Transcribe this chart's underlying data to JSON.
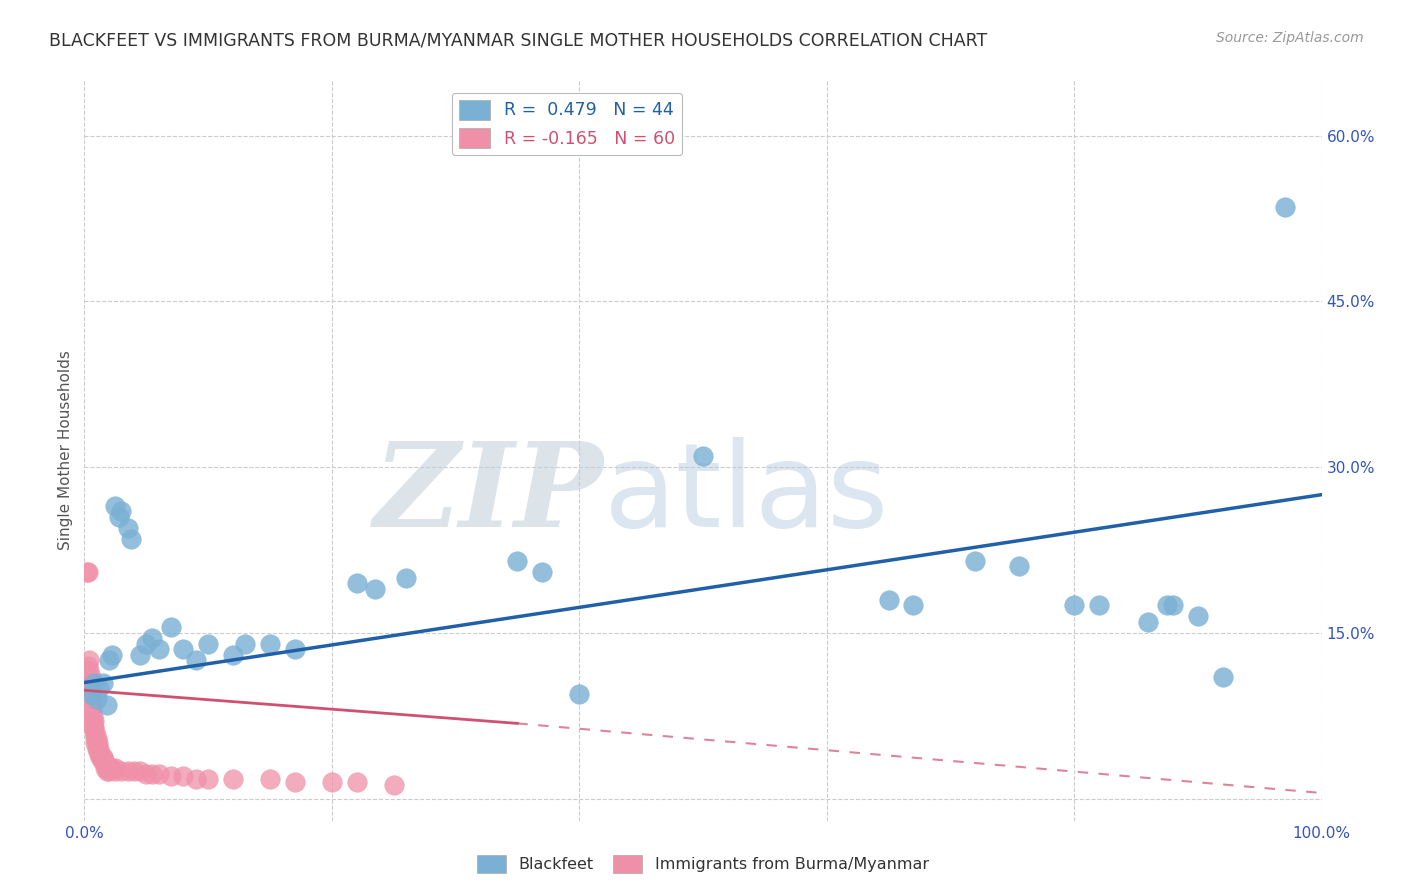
{
  "title": "BLACKFEET VS IMMIGRANTS FROM BURMA/MYANMAR SINGLE MOTHER HOUSEHOLDS CORRELATION CHART",
  "source": "Source: ZipAtlas.com",
  "ylabel": "Single Mother Households",
  "xlim": [
    0,
    1.0
  ],
  "ylim": [
    -0.02,
    0.65
  ],
  "xticks": [
    0.0,
    0.2,
    0.4,
    0.6,
    0.8,
    1.0
  ],
  "xticklabels": [
    "0.0%",
    "",
    "",
    "",
    "",
    "100.0%"
  ],
  "yticks": [
    0.0,
    0.15,
    0.3,
    0.45,
    0.6
  ],
  "yticklabels": [
    "",
    "15.0%",
    "30.0%",
    "45.0%",
    "60.0%"
  ],
  "blackfeet_color": "#7ab0d4",
  "blackfeet_line_color": "#2060a8",
  "burma_color": "#f090a8",
  "burma_line_color": "#d05070",
  "blackfeet_R": 0.479,
  "blackfeet_N": 44,
  "burma_R": -0.165,
  "burma_N": 60,
  "blackfeet_line": [
    0.0,
    0.105,
    1.0,
    0.275
  ],
  "burma_line_solid": [
    0.0,
    0.098,
    0.35,
    0.068
  ],
  "burma_line_dashed": [
    0.35,
    0.068,
    1.0,
    0.005
  ],
  "blackfeet_points": [
    [
      0.008,
      0.105
    ],
    [
      0.01,
      0.09
    ],
    [
      0.012,
      0.1
    ],
    [
      0.015,
      0.105
    ],
    [
      0.018,
      0.085
    ],
    [
      0.02,
      0.125
    ],
    [
      0.022,
      0.13
    ],
    [
      0.025,
      0.265
    ],
    [
      0.028,
      0.255
    ],
    [
      0.03,
      0.26
    ],
    [
      0.035,
      0.245
    ],
    [
      0.038,
      0.235
    ],
    [
      0.045,
      0.13
    ],
    [
      0.05,
      0.14
    ],
    [
      0.055,
      0.145
    ],
    [
      0.06,
      0.135
    ],
    [
      0.07,
      0.155
    ],
    [
      0.08,
      0.135
    ],
    [
      0.09,
      0.125
    ],
    [
      0.1,
      0.14
    ],
    [
      0.12,
      0.13
    ],
    [
      0.13,
      0.14
    ],
    [
      0.15,
      0.14
    ],
    [
      0.17,
      0.135
    ],
    [
      0.22,
      0.195
    ],
    [
      0.235,
      0.19
    ],
    [
      0.26,
      0.2
    ],
    [
      0.35,
      0.215
    ],
    [
      0.37,
      0.205
    ],
    [
      0.4,
      0.095
    ],
    [
      0.5,
      0.31
    ],
    [
      0.65,
      0.18
    ],
    [
      0.67,
      0.175
    ],
    [
      0.72,
      0.215
    ],
    [
      0.755,
      0.21
    ],
    [
      0.8,
      0.175
    ],
    [
      0.82,
      0.175
    ],
    [
      0.86,
      0.16
    ],
    [
      0.875,
      0.175
    ],
    [
      0.88,
      0.175
    ],
    [
      0.9,
      0.165
    ],
    [
      0.92,
      0.11
    ],
    [
      0.97,
      0.535
    ],
    [
      0.005,
      0.095
    ]
  ],
  "burma_points": [
    [
      0.002,
      0.205
    ],
    [
      0.003,
      0.205
    ],
    [
      0.003,
      0.12
    ],
    [
      0.004,
      0.125
    ],
    [
      0.004,
      0.115
    ],
    [
      0.005,
      0.11
    ],
    [
      0.005,
      0.105
    ],
    [
      0.005,
      0.1
    ],
    [
      0.006,
      0.09
    ],
    [
      0.006,
      0.085
    ],
    [
      0.006,
      0.08
    ],
    [
      0.007,
      0.075
    ],
    [
      0.007,
      0.07
    ],
    [
      0.007,
      0.065
    ],
    [
      0.008,
      0.07
    ],
    [
      0.008,
      0.065
    ],
    [
      0.008,
      0.06
    ],
    [
      0.009,
      0.06
    ],
    [
      0.009,
      0.055
    ],
    [
      0.009,
      0.05
    ],
    [
      0.01,
      0.055
    ],
    [
      0.01,
      0.05
    ],
    [
      0.01,
      0.045
    ],
    [
      0.011,
      0.05
    ],
    [
      0.011,
      0.045
    ],
    [
      0.012,
      0.045
    ],
    [
      0.012,
      0.04
    ],
    [
      0.013,
      0.04
    ],
    [
      0.013,
      0.038
    ],
    [
      0.014,
      0.038
    ],
    [
      0.014,
      0.035
    ],
    [
      0.015,
      0.038
    ],
    [
      0.015,
      0.035
    ],
    [
      0.016,
      0.035
    ],
    [
      0.016,
      0.032
    ],
    [
      0.017,
      0.032
    ],
    [
      0.017,
      0.028
    ],
    [
      0.018,
      0.028
    ],
    [
      0.018,
      0.025
    ],
    [
      0.02,
      0.025
    ],
    [
      0.022,
      0.028
    ],
    [
      0.025,
      0.028
    ],
    [
      0.025,
      0.025
    ],
    [
      0.03,
      0.025
    ],
    [
      0.035,
      0.025
    ],
    [
      0.04,
      0.025
    ],
    [
      0.045,
      0.025
    ],
    [
      0.05,
      0.022
    ],
    [
      0.055,
      0.022
    ],
    [
      0.06,
      0.022
    ],
    [
      0.07,
      0.02
    ],
    [
      0.08,
      0.02
    ],
    [
      0.09,
      0.018
    ],
    [
      0.1,
      0.018
    ],
    [
      0.12,
      0.018
    ],
    [
      0.15,
      0.018
    ],
    [
      0.17,
      0.015
    ],
    [
      0.2,
      0.015
    ],
    [
      0.22,
      0.015
    ],
    [
      0.25,
      0.012
    ]
  ],
  "background_color": "#ffffff",
  "grid_color": "#cccccc"
}
